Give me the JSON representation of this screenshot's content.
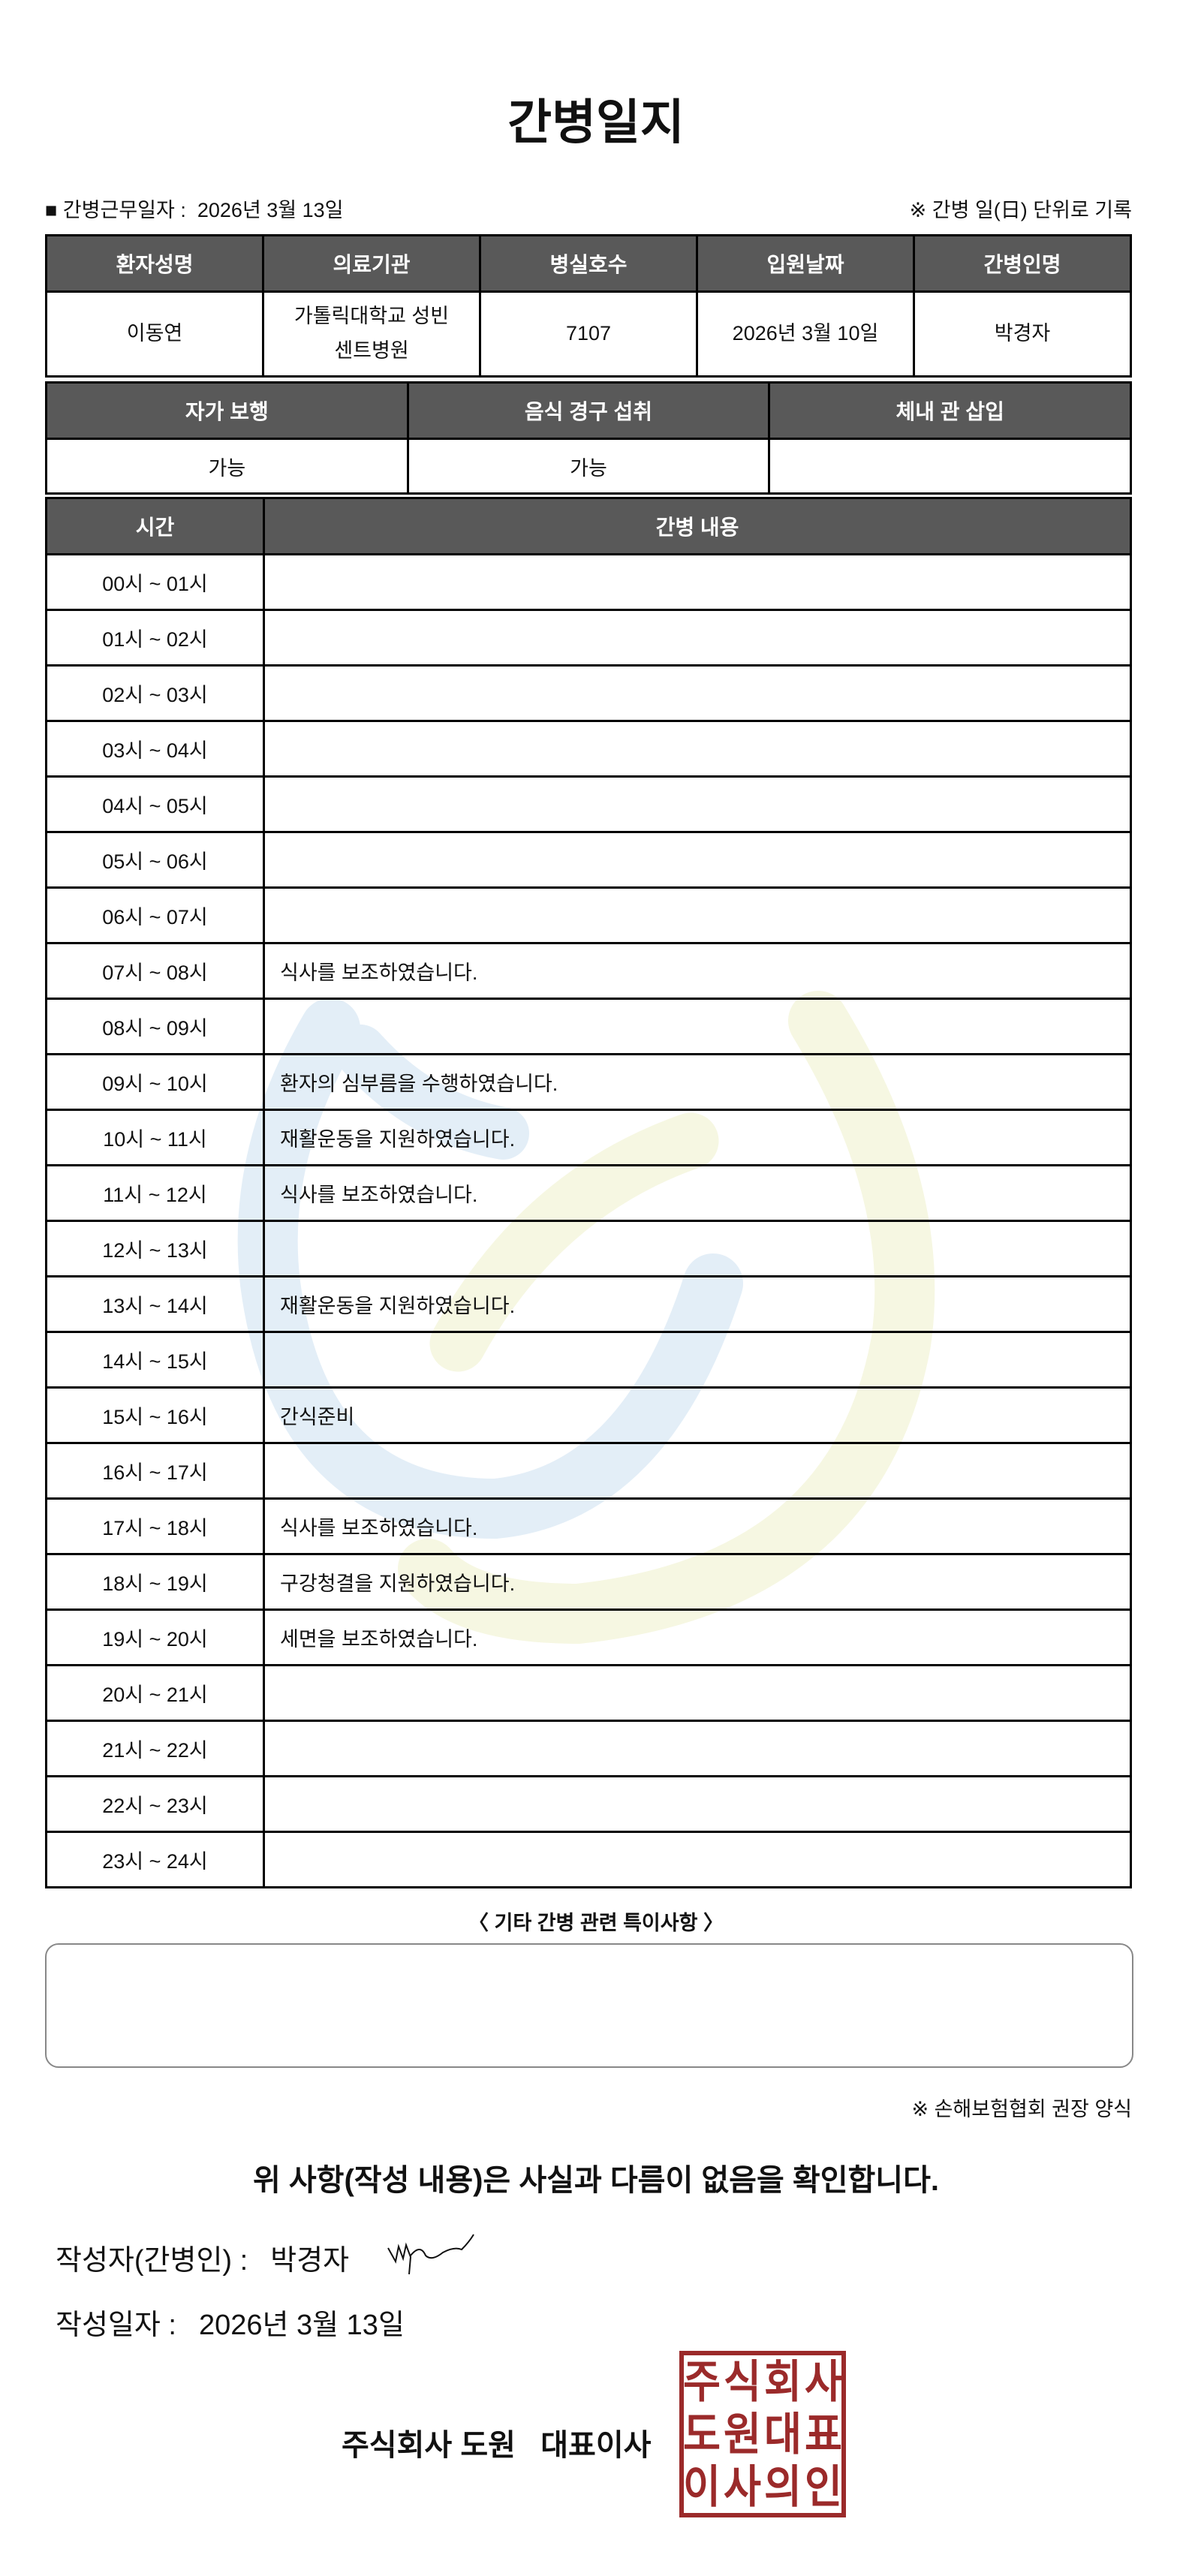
{
  "title": "간병일지",
  "work_date": {
    "label": "■ 간병근무일자  :",
    "value": "2026년 3월 13일"
  },
  "unit_note": "※ 간병 일(日) 단위로 기록",
  "patient_table": {
    "headers": [
      "환자성명",
      "의료기관",
      "병실호수",
      "입원날짜",
      "간병인명"
    ],
    "values": [
      "이동연",
      "가톨릭대학교 성빈센트병원",
      "7107",
      "2026년 3월 10일",
      "박경자"
    ]
  },
  "status_table": {
    "headers": [
      "자가 보행",
      "음식 경구 섭취",
      "체내 관 삽입"
    ],
    "values": [
      "가능",
      "가능",
      ""
    ]
  },
  "log_table": {
    "headers": [
      "시간",
      "간병 내용"
    ],
    "rows": [
      {
        "time": "00시 ~ 01시",
        "content": ""
      },
      {
        "time": "01시 ~ 02시",
        "content": ""
      },
      {
        "time": "02시 ~ 03시",
        "content": ""
      },
      {
        "time": "03시 ~ 04시",
        "content": ""
      },
      {
        "time": "04시 ~ 05시",
        "content": ""
      },
      {
        "time": "05시 ~ 06시",
        "content": ""
      },
      {
        "time": "06시 ~ 07시",
        "content": ""
      },
      {
        "time": "07시 ~ 08시",
        "content": "식사를 보조하였습니다."
      },
      {
        "time": "08시 ~ 09시",
        "content": ""
      },
      {
        "time": "09시 ~ 10시",
        "content": "환자의 심부름을 수행하였습니다."
      },
      {
        "time": "10시 ~ 11시",
        "content": "재활운동을 지원하였습니다."
      },
      {
        "time": "11시 ~ 12시",
        "content": "식사를 보조하였습니다."
      },
      {
        "time": "12시 ~ 13시",
        "content": ""
      },
      {
        "time": "13시 ~ 14시",
        "content": "재활운동을 지원하였습니다."
      },
      {
        "time": "14시 ~ 15시",
        "content": ""
      },
      {
        "time": "15시 ~ 16시",
        "content": "간식준비"
      },
      {
        "time": "16시 ~ 17시",
        "content": ""
      },
      {
        "time": "17시 ~ 18시",
        "content": "식사를 보조하였습니다."
      },
      {
        "time": "18시 ~ 19시",
        "content": "구강청결을 지원하였습니다."
      },
      {
        "time": "19시 ~ 20시",
        "content": "세면을 보조하였습니다."
      },
      {
        "time": "20시 ~ 21시",
        "content": ""
      },
      {
        "time": "21시 ~ 22시",
        "content": ""
      },
      {
        "time": "22시 ~ 23시",
        "content": ""
      },
      {
        "time": "23시 ~ 24시",
        "content": ""
      }
    ]
  },
  "remarks": {
    "label": "〈 기타 간병 관련 특이사항 〉",
    "value": ""
  },
  "kia_note": "※ 손해보험협회 권장 양식",
  "confirm_statement": "위 사항(작성 내용)은 사실과 다름이 없음을 확인합니다.",
  "author": {
    "label": "작성자(간병인) :",
    "value": "박경자"
  },
  "write_date": {
    "label": "작성일자 :",
    "value": "2026년 3월 13일"
  },
  "company": "주식회사 도원   대표이사",
  "seal": {
    "text": "주식회사도원대표이사의인",
    "color": "#9b2a2a"
  },
  "colors": {
    "header_fill": "#595959",
    "watermark_blue": "#e3eef7",
    "watermark_yellow": "#f6f7e2"
  }
}
